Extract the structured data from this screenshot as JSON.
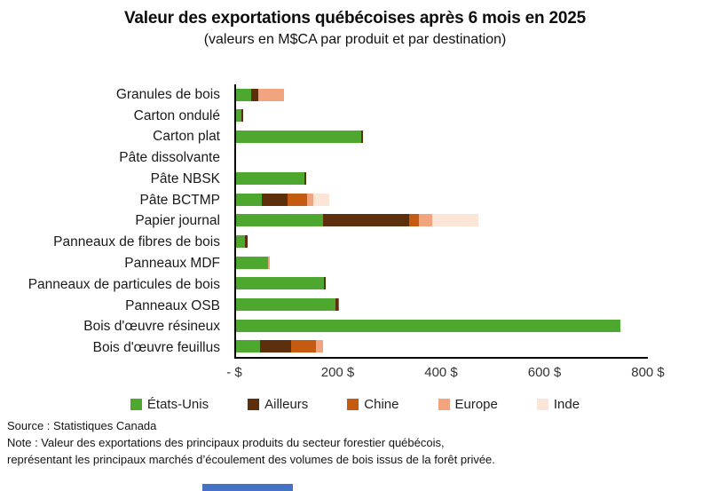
{
  "title": "Valeur des exportations québécoises après 6 mois en 2025",
  "subtitle": "(valeurs en M$CA par produit et par destination)",
  "chart_data": {
    "type": "bar",
    "orientation": "horizontal",
    "stacked": true,
    "grid": false,
    "legend_position": "bottom",
    "categories": [
      "Granules de bois",
      "Carton ondulé",
      "Carton plat",
      "Pâte dissolvante",
      "Pâte NBSK",
      "Pâte BCTMP",
      "Papier journal",
      "Panneaux de fibres de bois",
      "Panneaux MDF",
      "Panneaux de particules de bois",
      "Panneaux OSB",
      "Bois d'œuvre résineux",
      "Bois d'œuvre feuillus"
    ],
    "series": [
      {
        "name": "États-Unis",
        "slug": "etats-unis",
        "color": "#4EA72E",
        "values": [
          30,
          10,
          242,
          0,
          132,
          50,
          168,
          18,
          62,
          170,
          193,
          744,
          47
        ]
      },
      {
        "name": "Ailleurs",
        "slug": "ailleurs",
        "color": "#5E2F0D",
        "values": [
          13,
          3,
          4,
          0,
          4,
          50,
          166,
          5,
          0,
          4,
          4,
          0,
          60
        ]
      },
      {
        "name": "Chine",
        "slug": "chine",
        "color": "#C55A11",
        "values": [
          0,
          0,
          0,
          0,
          0,
          37,
          20,
          0,
          0,
          0,
          3,
          0,
          47
        ]
      },
      {
        "name": "Europe",
        "slug": "europe",
        "color": "#F2A47E",
        "values": [
          49,
          0,
          0,
          0,
          0,
          13,
          26,
          0,
          3,
          0,
          0,
          0,
          15
        ]
      },
      {
        "name": "Inde",
        "slug": "inde",
        "color": "#FBE5D6",
        "values": [
          0,
          0,
          0,
          0,
          0,
          30,
          89,
          0,
          0,
          0,
          0,
          0,
          0
        ]
      }
    ],
    "x_axis": {
      "min": 0,
      "max": 800,
      "ticks": [
        0,
        200,
        400,
        600,
        800
      ],
      "tick_labels": [
        "- $",
        "200 $",
        "400 $",
        "600 $",
        "800 $"
      ]
    },
    "units": "M$CA"
  },
  "footer": {
    "source": "Source : Statistiques Canada",
    "note_line1": "Note : Valeur des exportations des principaux produits du secteur forestier québécois,",
    "note_line2": "représentant les principaux marchés d’écoulement des volumes de bois issus de la forêt privée."
  },
  "decor": {
    "bottom_strip_color": "#4472C4"
  }
}
